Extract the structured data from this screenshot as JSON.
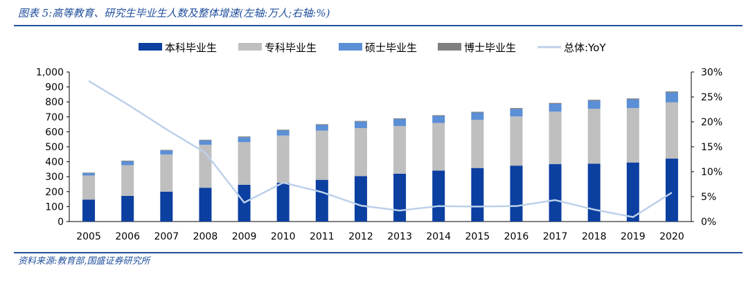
{
  "caption": "图表 5:高等教育、研究生毕业生人数及整体增速(左轴:万人;右轴:%)",
  "source": "资料来源:教育部,国盛证券研究所",
  "colors": {
    "undergrad": "#0b3fa0",
    "junior_college": "#bfbfbf",
    "master": "#5b8fd6",
    "doctor": "#7f7f7f",
    "yoy": "#bcd0ea",
    "frame": "#1f4e9c"
  },
  "chart_data": {
    "type": "bar",
    "stacked": true,
    "categories": [
      "2005",
      "2006",
      "2007",
      "2008",
      "2009",
      "2010",
      "2011",
      "2012",
      "2013",
      "2014",
      "2015",
      "2016",
      "2017",
      "2018",
      "2019",
      "2020"
    ],
    "series": [
      {
        "name": "本科毕业生",
        "values": [
          147,
          172,
          200,
          226,
          246,
          259,
          279,
          304,
          320,
          341,
          358,
          374,
          384,
          387,
          395,
          421
        ]
      },
      {
        "name": "专科毕业生",
        "values": [
          161,
          205,
          248,
          287,
          285,
          316,
          329,
          321,
          319,
          318,
          322,
          329,
          351,
          367,
          364,
          376
        ]
      },
      {
        "name": "硕士毕业生",
        "values": [
          16,
          26,
          27,
          30,
          33,
          34,
          38,
          43,
          46,
          47,
          49,
          50,
          52,
          54,
          58,
          66
        ]
      },
      {
        "name": "博士毕业生",
        "values": [
          3,
          4,
          4,
          4,
          5,
          5,
          5,
          5,
          5,
          5,
          5,
          6,
          6,
          6,
          6,
          7
        ]
      }
    ],
    "line_series": {
      "name": "总体:YoY",
      "axis": "right",
      "values": [
        28.2,
        23.5,
        18.5,
        13.8,
        3.8,
        7.8,
        5.9,
        3.2,
        2.2,
        3.1,
        3.0,
        3.1,
        4.3,
        2.4,
        0.9,
        5.8
      ]
    },
    "y_left": {
      "min": 0,
      "max": 1000,
      "ticks": [
        "0",
        "100",
        "200",
        "300",
        "400",
        "500",
        "600",
        "700",
        "800",
        "900",
        "1,000"
      ]
    },
    "y_right": {
      "min": 0,
      "max": 30,
      "ticks": [
        "0%",
        "5%",
        "10%",
        "15%",
        "20%",
        "25%",
        "30%"
      ]
    },
    "legend_position": "top",
    "grid": false
  }
}
